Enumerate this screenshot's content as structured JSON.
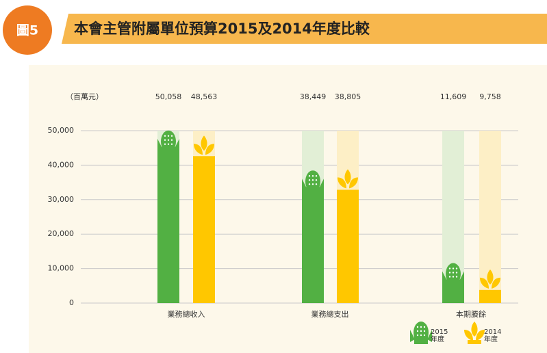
{
  "badge": "圖5",
  "chart_data": {
    "type": "bar",
    "title": "本會主管附屬單位預算2015及2014年度比較",
    "unit_label": "（百萬元）",
    "categories": [
      "業務總收入",
      "業務總支出",
      "本期賸餘"
    ],
    "series": [
      {
        "name": "2015年度",
        "color": "#52b043",
        "values": [
          50058,
          38449,
          11609
        ],
        "value_labels": [
          "50,058",
          "38,449",
          "11,609"
        ]
      },
      {
        "name": "2014年度",
        "color": "#ffc700",
        "values": [
          48563,
          38805,
          9758
        ],
        "value_labels": [
          "48,563",
          "38,805",
          "9,758"
        ]
      }
    ],
    "ylim": [
      0,
      50000
    ],
    "yticks": [
      0,
      {
        "value": 10000,
        "label": "10,000"
      },
      {
        "value": 20000,
        "label": "20,000"
      },
      {
        "value": 30000,
        "label": "30,000"
      },
      {
        "value": 40000,
        "label": "40,000"
      },
      {
        "value": 50000,
        "label": "50,000"
      }
    ],
    "grid": true
  }
}
